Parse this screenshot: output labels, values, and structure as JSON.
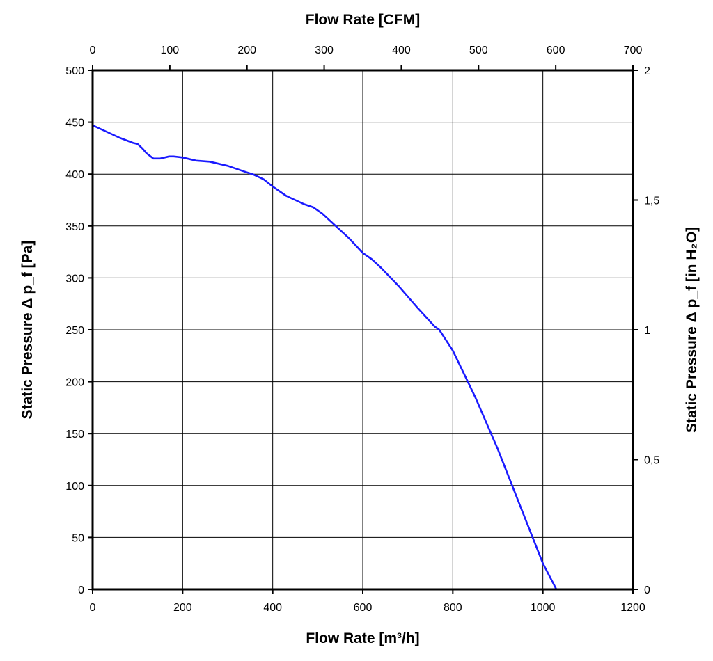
{
  "chart_data": {
    "type": "line",
    "title": "",
    "xlabel": "Flow Rate [m³/h]",
    "ylabel_left": "Static Pressure Δ p_f [Pa]",
    "xlabel_top": "Flow Rate [CFM]",
    "ylabel_right": "Static Pressure Δ p_f [in H₂O]",
    "xlim": [
      0,
      1200
    ],
    "ylim": [
      0,
      500
    ],
    "xlim_top": [
      0,
      700
    ],
    "ylim_right": [
      0,
      2
    ],
    "x_ticks": [
      0,
      200,
      400,
      600,
      800,
      1000,
      1200
    ],
    "x_tick_labels": [
      "0",
      "200",
      "400",
      "600",
      "800",
      "1000",
      "1200"
    ],
    "y_ticks": [
      0,
      50,
      100,
      150,
      200,
      250,
      300,
      350,
      400,
      450,
      500
    ],
    "y_tick_labels": [
      "0",
      "50",
      "100",
      "150",
      "200",
      "250",
      "300",
      "350",
      "400",
      "450",
      "500"
    ],
    "top_ticks": [
      0,
      100,
      200,
      300,
      400,
      500,
      600,
      700
    ],
    "top_tick_labels": [
      "0",
      "100",
      "200",
      "300",
      "400",
      "500",
      "600",
      "700"
    ],
    "right_ticks": [
      0,
      0.5,
      1,
      1.5,
      2
    ],
    "right_tick_labels": [
      "0",
      "0,5",
      "1",
      "1,5",
      "2"
    ],
    "grid": true,
    "series": [
      {
        "name": "Static Pressure",
        "color": "#1a1aff",
        "x": [
          0,
          30,
          60,
          90,
          100,
          110,
          120,
          135,
          150,
          170,
          180,
          200,
          230,
          260,
          300,
          340,
          355,
          380,
          400,
          430,
          470,
          490,
          510,
          540,
          570,
          600,
          620,
          640,
          680,
          720,
          760,
          770,
          800,
          850,
          900,
          950,
          1000,
          1030,
          1060,
          1090
        ],
        "y": [
          447,
          441,
          435,
          430,
          429,
          425,
          420,
          415,
          415,
          417,
          417,
          416,
          413,
          412,
          408,
          402,
          400,
          395,
          388,
          379,
          371,
          368,
          362,
          350,
          338,
          324,
          318,
          310,
          292,
          272,
          253,
          250,
          230,
          185,
          135,
          80,
          25,
          0,
          0,
          0
        ]
      }
    ]
  }
}
